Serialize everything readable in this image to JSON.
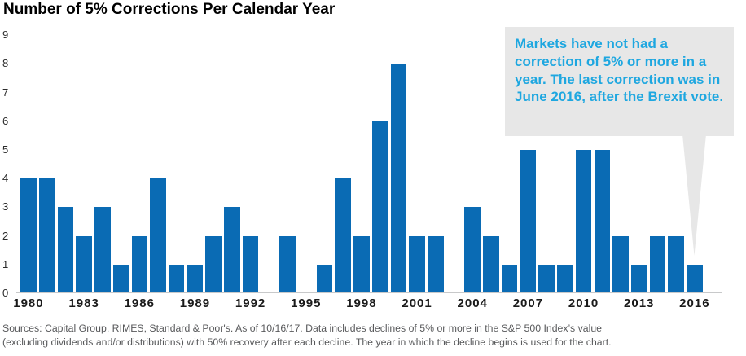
{
  "page": {
    "title": "Number of 5% Corrections Per Calendar Year"
  },
  "chart_data": {
    "type": "bar",
    "title": "Number of 5% Corrections Per Calendar Year",
    "categories": [
      1980,
      1981,
      1982,
      1983,
      1984,
      1985,
      1986,
      1987,
      1988,
      1989,
      1990,
      1991,
      1992,
      1993,
      1994,
      1995,
      1996,
      1997,
      1998,
      1999,
      2000,
      2001,
      2002,
      2003,
      2004,
      2005,
      2006,
      2007,
      2008,
      2009,
      2010,
      2011,
      2012,
      2013,
      2014,
      2015,
      2016
    ],
    "values": [
      4,
      4,
      3,
      2,
      3,
      1,
      2,
      4,
      1,
      1,
      2,
      3,
      2,
      0,
      2,
      0,
      1,
      4,
      2,
      6,
      8,
      2,
      2,
      0,
      3,
      2,
      1,
      5,
      1,
      1,
      5,
      5,
      2,
      1,
      2,
      2,
      1
    ],
    "xlabel": "",
    "ylabel": "",
    "ylim": [
      0,
      9
    ],
    "ytick_labels": [
      "0",
      "1",
      "2",
      "3",
      "4",
      "5",
      "6",
      "7",
      "8",
      "9"
    ],
    "xtick_labels": [
      "1980",
      "1983",
      "1986",
      "1989",
      "1992",
      "1995",
      "1998",
      "2001",
      "2004",
      "2007",
      "2010",
      "2013",
      "2016"
    ],
    "grid": false,
    "legend": "none",
    "bar_color": "#0a6bb4"
  },
  "callout": {
    "text": "Markets have not had a correction of 5% or more in a year. The last correction was in June 2016, after the Brexit vote.",
    "text_color": "#1ea7e0",
    "bg_color": "#e7e7e7",
    "points_to_year": "2016"
  },
  "footer": {
    "line1": "Sources: Capital Group, RIMES, Standard & Poor's. As of 10/16/17. Data includes declines of 5% or more in the S&P 500 Index’s value",
    "line2": "(excluding dividends and/or distributions) with 50% recovery after each decline. The year in which the decline begins is used for the chart."
  },
  "colors": {
    "bar": "#0a6bb4",
    "axis_line": "#c8c9ca",
    "tick_text": "#1a1a1a",
    "footer_text": "#58595b"
  }
}
